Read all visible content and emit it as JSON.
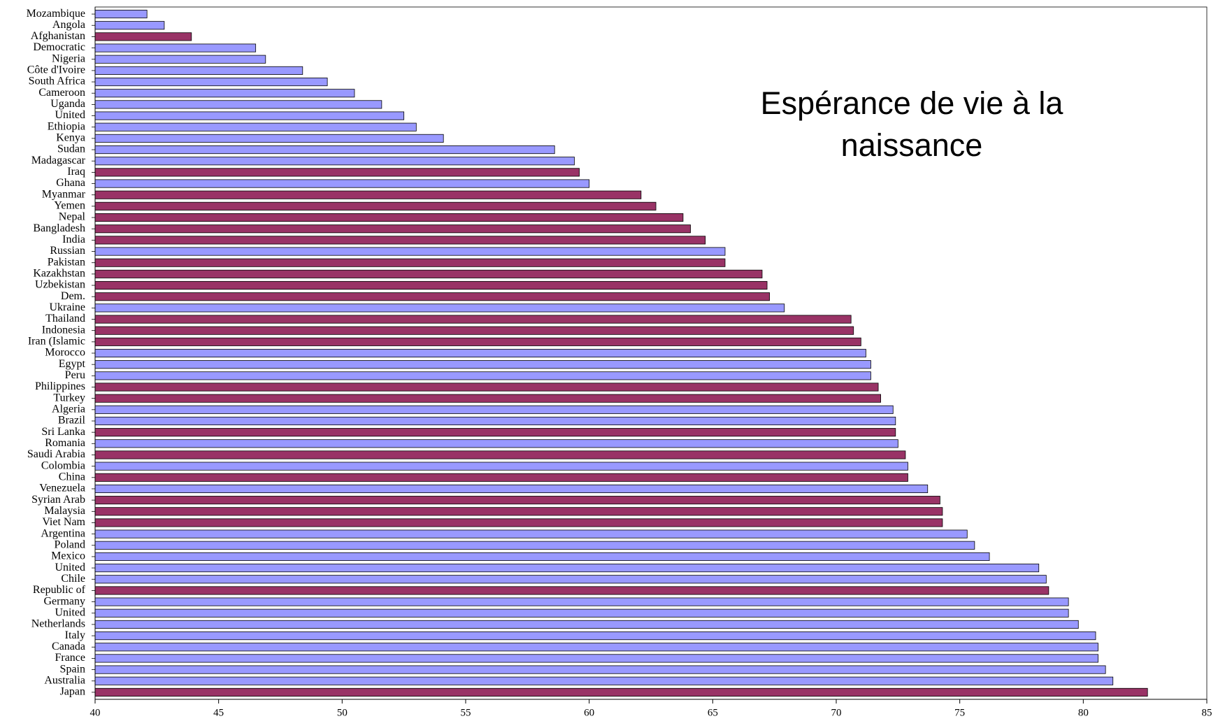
{
  "chart_data": {
    "type": "bar",
    "orientation": "horizontal",
    "title": "Espérance de vie à la naissance",
    "categories": [
      "Mozambique",
      "Angola",
      "Afghanistan",
      "Democratic",
      "Nigeria",
      "Côte d'Ivoire",
      "South Africa",
      "Cameroon",
      "Uganda",
      "United",
      "Ethiopia",
      "Kenya",
      "Sudan",
      "Madagascar",
      "Iraq",
      "Ghana",
      "Myanmar",
      "Yemen",
      "Nepal",
      "Bangladesh",
      "India",
      "Russian",
      "Pakistan",
      "Kazakhstan",
      "Uzbekistan",
      "Dem.",
      "Ukraine",
      "Thailand",
      "Indonesia",
      "Iran (Islamic",
      "Morocco",
      "Egypt",
      "Peru",
      "Philippines",
      "Turkey",
      "Algeria",
      "Brazil",
      "Sri Lanka",
      "Romania",
      "Saudi Arabia",
      "Colombia",
      "China",
      "Venezuela",
      "Syrian Arab",
      "Malaysia",
      "Viet Nam",
      "Argentina",
      "Poland",
      "Mexico",
      "United",
      "Chile",
      "Republic of",
      "Germany",
      "United",
      "Netherlands",
      "Italy",
      "Canada",
      "France",
      "Spain",
      "Australia",
      "Japan"
    ],
    "values": [
      42.1,
      42.8,
      43.9,
      46.5,
      46.9,
      48.4,
      49.4,
      50.5,
      51.6,
      52.5,
      53.0,
      54.1,
      58.6,
      59.4,
      59.6,
      60.0,
      62.1,
      62.7,
      63.8,
      64.1,
      64.7,
      65.5,
      65.5,
      67.0,
      67.2,
      67.3,
      67.9,
      70.6,
      70.7,
      71.0,
      71.2,
      71.4,
      71.4,
      71.7,
      71.8,
      72.3,
      72.4,
      72.4,
      72.5,
      72.8,
      72.9,
      72.9,
      73.7,
      74.2,
      74.3,
      74.3,
      75.3,
      75.6,
      76.2,
      78.2,
      78.5,
      78.6,
      79.4,
      79.4,
      79.8,
      80.5,
      80.6,
      80.6,
      80.9,
      81.2,
      82.6
    ],
    "colors": [
      "#9999ff",
      "#9999ff",
      "#993366",
      "#9999ff",
      "#9999ff",
      "#9999ff",
      "#9999ff",
      "#9999ff",
      "#9999ff",
      "#9999ff",
      "#9999ff",
      "#9999ff",
      "#9999ff",
      "#9999ff",
      "#993366",
      "#9999ff",
      "#993366",
      "#993366",
      "#993366",
      "#993366",
      "#993366",
      "#9999ff",
      "#993366",
      "#993366",
      "#993366",
      "#993366",
      "#9999ff",
      "#993366",
      "#993366",
      "#993366",
      "#9999ff",
      "#9999ff",
      "#9999ff",
      "#993366",
      "#993366",
      "#9999ff",
      "#9999ff",
      "#993366",
      "#9999ff",
      "#993366",
      "#9999ff",
      "#993366",
      "#9999ff",
      "#993366",
      "#993366",
      "#993366",
      "#9999ff",
      "#9999ff",
      "#9999ff",
      "#9999ff",
      "#9999ff",
      "#993366",
      "#9999ff",
      "#9999ff",
      "#9999ff",
      "#9999ff",
      "#9999ff",
      "#9999ff",
      "#9999ff",
      "#9999ff",
      "#993366"
    ],
    "xlim": [
      40,
      85
    ],
    "xticks": [
      40,
      45,
      50,
      55,
      60,
      65,
      70,
      75,
      80,
      85
    ]
  }
}
